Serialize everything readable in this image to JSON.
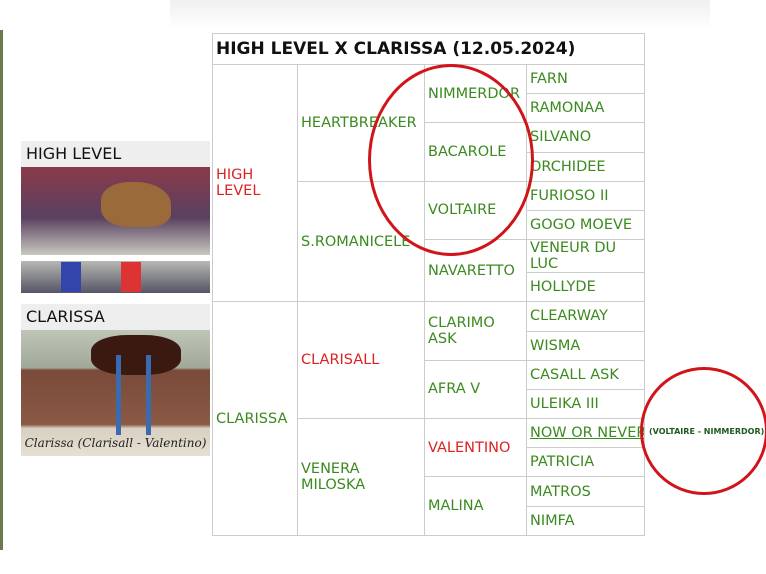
{
  "title": "HIGH LEVEL X CLARISSA (12.05.2024)",
  "cards": [
    {
      "label": "HIGH LEVEL"
    },
    {
      "label": "CLARISSA",
      "caption": "Clarissa (Clarisall - Valentino)"
    }
  ],
  "pedigree": {
    "g1": [
      {
        "name": "HIGH LEVEL",
        "color": "red"
      },
      {
        "name": "CLARISSA",
        "color": "green"
      }
    ],
    "g2": [
      {
        "name": "HEARTBREAKER",
        "color": "green"
      },
      {
        "name": "S.ROMANICELE",
        "color": "green"
      },
      {
        "name": "CLARISALL",
        "color": "red"
      },
      {
        "name": "VENERA MILOSKA",
        "color": "green"
      }
    ],
    "g3": [
      {
        "name": "NIMMERDOR"
      },
      {
        "name": "BACAROLE"
      },
      {
        "name": "VOLTAIRE"
      },
      {
        "name": "NAVARETTO"
      },
      {
        "name": "CLARIMO ASK"
      },
      {
        "name": "AFRA V"
      },
      {
        "name": "VALENTINO",
        "color": "red"
      },
      {
        "name": "MALINA"
      }
    ],
    "g4": [
      "FARN",
      "RAMONAA",
      "SILVANO",
      "ORCHIDEE",
      "FURIOSO II",
      "GOGO MOEVE",
      "VENEUR DU LUC",
      "HOLLYDE",
      "CLEARWAY",
      "WISMA",
      "CASALL ASK",
      "ULEIKA III",
      "NOW OR NEVER",
      "PATRICIA",
      "MATROS",
      "NIMFA"
    ]
  },
  "annotation": "(VOLTAIRE - NIMMERDOR)",
  "colors": {
    "green": "#3b8a1f",
    "red": "#dd2222",
    "circle": "#d0151a"
  }
}
